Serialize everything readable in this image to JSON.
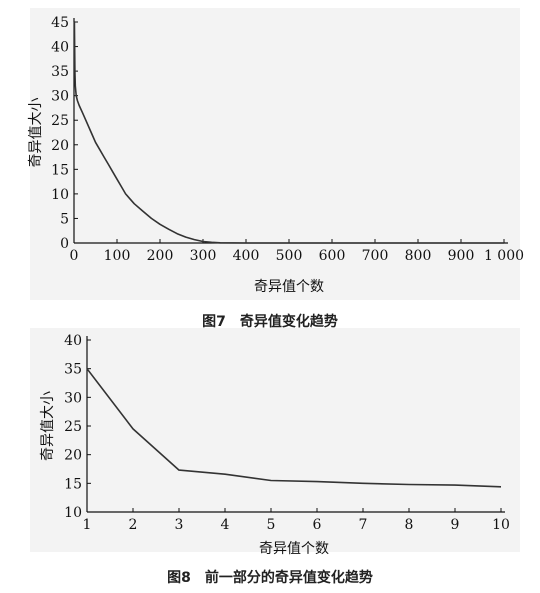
{
  "figures": [
    {
      "caption": "图7　奇异值变化趋势",
      "chart_data": {
        "type": "line",
        "xlabel": "奇异值个数",
        "ylabel": "奇异值大小",
        "xlim": [
          0,
          1000
        ],
        "ylim": [
          0,
          45
        ],
        "x_ticks": [
          0,
          100,
          200,
          300,
          400,
          500,
          600,
          700,
          800,
          900,
          1000
        ],
        "x_tick_labels": [
          "0",
          "100",
          "200",
          "300",
          "400",
          "500",
          "600",
          "700",
          "800",
          "900",
          "1 000"
        ],
        "y_ticks": [
          0,
          5,
          10,
          15,
          20,
          25,
          30,
          35,
          40,
          45
        ],
        "y_tick_labels": [
          "0",
          "5",
          "10",
          "15",
          "20",
          "25",
          "30",
          "35",
          "40",
          "45"
        ],
        "grid": false,
        "series": [
          {
            "x": [
              1,
              2,
              3,
              5,
              8,
              12,
              20,
              30,
              40,
              50,
              60,
              70,
              80,
              90,
              100,
              110,
              120,
              140,
              160,
              180,
              200,
              220,
              240,
              260,
              280,
              300,
              320,
              340,
              400,
              500,
              600,
              700,
              800,
              900,
              1000
            ],
            "y": [
              45,
              35,
              32,
              30,
              29,
              28,
              26.5,
              24.5,
              22.5,
              20.5,
              19,
              17.5,
              16,
              14.5,
              13,
              11.5,
              10,
              8,
              6.5,
              5,
              3.8,
              2.8,
              1.9,
              1.2,
              0.7,
              0.3,
              0.15,
              0.05,
              0,
              0,
              0,
              0,
              0,
              0,
              0
            ]
          }
        ]
      }
    },
    {
      "caption": "图8　前一部分的奇异值变化趋势",
      "chart_data": {
        "type": "line",
        "xlabel": "奇异值个数",
        "ylabel": "奇异值大小",
        "xlim": [
          1,
          10
        ],
        "ylim": [
          10,
          40
        ],
        "x_ticks": [
          1,
          2,
          3,
          4,
          5,
          6,
          7,
          8,
          9,
          10
        ],
        "x_tick_labels": [
          "1",
          "2",
          "3",
          "4",
          "5",
          "6",
          "7",
          "8",
          "9",
          "10"
        ],
        "y_ticks": [
          10,
          15,
          20,
          25,
          30,
          35,
          40
        ],
        "y_tick_labels": [
          "10",
          "15",
          "20",
          "25",
          "30",
          "35",
          "40"
        ],
        "grid": false,
        "series": [
          {
            "x": [
              1,
              2,
              3,
              4,
              5,
              6,
              7,
              8,
              9,
              10
            ],
            "y": [
              35,
              24.5,
              17.3,
              16.6,
              15.5,
              15.3,
              15.0,
              14.8,
              14.7,
              14.4
            ]
          }
        ]
      }
    }
  ]
}
